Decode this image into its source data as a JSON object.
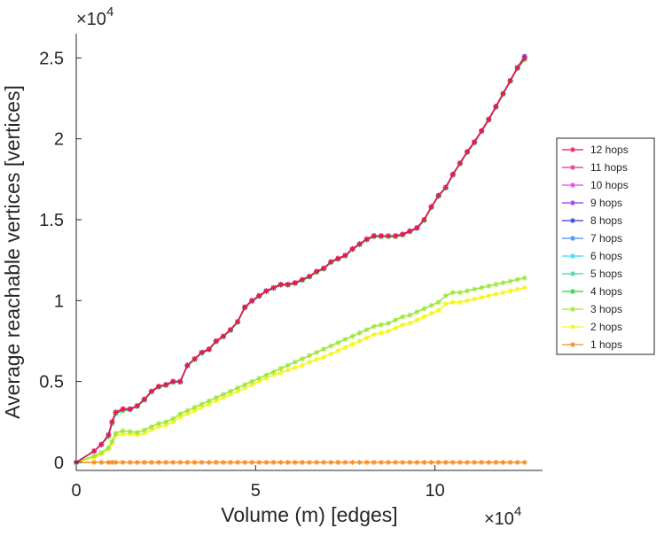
{
  "chart_data": {
    "type": "line",
    "title": "",
    "xlabel": "Volume (m) [edges]",
    "ylabel": "Average reachable vertices [vertices]",
    "x_exponent_label": "×10",
    "x_exponent_power": "4",
    "y_exponent_label": "×10",
    "y_exponent_power": "4",
    "xlim": [
      0,
      130000
    ],
    "ylim": [
      -500,
      26500
    ],
    "x_ticks": [
      0,
      50000,
      100000
    ],
    "x_tick_labels": [
      "0",
      "5",
      "10"
    ],
    "y_ticks": [
      0,
      5000,
      10000,
      15000,
      20000,
      25000
    ],
    "y_tick_labels": [
      "0",
      "0.5",
      "1",
      "1.5",
      "2",
      "2.5"
    ],
    "grid": false,
    "legend_position": "right",
    "x": [
      0,
      5000,
      7000,
      9000,
      10000,
      11000,
      13000,
      15000,
      17000,
      19000,
      21000,
      23000,
      25000,
      27000,
      29000,
      31000,
      33000,
      35000,
      37000,
      39000,
      41000,
      43000,
      45000,
      47000,
      49000,
      51000,
      53000,
      55000,
      57000,
      59000,
      61000,
      63000,
      65000,
      67000,
      69000,
      71000,
      73000,
      75000,
      77000,
      79000,
      81000,
      83000,
      85000,
      87000,
      89000,
      91000,
      93000,
      95000,
      97000,
      99000,
      101000,
      103000,
      105000,
      107000,
      109000,
      111000,
      113000,
      115000,
      117000,
      119000,
      121000,
      123000,
      125000
    ],
    "series": [
      {
        "name": "12 hops",
        "color": "#e6194b",
        "values": [
          0,
          700,
          1100,
          1700,
          2500,
          3100,
          3300,
          3300,
          3500,
          3900,
          4400,
          4700,
          4800,
          5000,
          5000,
          6000,
          6400,
          6800,
          7000,
          7500,
          7800,
          8200,
          8700,
          9600,
          10000,
          10300,
          10600,
          10800,
          11000,
          11000,
          11100,
          11300,
          11500,
          11800,
          12000,
          12400,
          12600,
          12800,
          13200,
          13500,
          13800,
          14000,
          14000,
          14000,
          14000,
          14100,
          14300,
          14500,
          15000,
          15800,
          16500,
          17000,
          17800,
          18500,
          19200,
          19800,
          20500,
          21200,
          22000,
          22800,
          23600,
          24400,
          25000
        ]
      },
      {
        "name": "11 hops",
        "color": "#f0298a",
        "values": [
          0,
          700,
          1100,
          1700,
          2500,
          3100,
          3300,
          3300,
          3500,
          3900,
          4400,
          4700,
          4800,
          5000,
          5000,
          6000,
          6400,
          6800,
          7000,
          7500,
          7800,
          8200,
          8700,
          9600,
          10000,
          10300,
          10600,
          10800,
          11000,
          11000,
          11100,
          11300,
          11500,
          11800,
          12000,
          12400,
          12600,
          12800,
          13200,
          13500,
          13800,
          14000,
          14000,
          14000,
          14000,
          14100,
          14300,
          14500,
          15000,
          15800,
          16500,
          17000,
          17800,
          18500,
          19200,
          19800,
          20500,
          21200,
          22000,
          22800,
          23600,
          24400,
          25000
        ]
      },
      {
        "name": "10 hops",
        "color": "#ea3bf0",
        "values": [
          0,
          700,
          1100,
          1700,
          2500,
          3100,
          3300,
          3300,
          3500,
          3900,
          4400,
          4700,
          4800,
          5000,
          5000,
          6000,
          6400,
          6800,
          7000,
          7500,
          7800,
          8200,
          8700,
          9600,
          10000,
          10300,
          10600,
          10800,
          11000,
          11000,
          11100,
          11300,
          11500,
          11800,
          12000,
          12400,
          12600,
          12800,
          13200,
          13500,
          13800,
          14000,
          14000,
          14000,
          14000,
          14100,
          14300,
          14500,
          15000,
          15800,
          16500,
          17000,
          17800,
          18500,
          19200,
          19800,
          20500,
          21200,
          22000,
          22800,
          23600,
          24400,
          25000
        ]
      },
      {
        "name": "9 hops",
        "color": "#8c39e6",
        "values": [
          0,
          700,
          1100,
          1700,
          2500,
          3100,
          3300,
          3300,
          3500,
          3900,
          4400,
          4700,
          4800,
          5000,
          5000,
          6000,
          6400,
          6800,
          7000,
          7500,
          7800,
          8200,
          8700,
          9600,
          10000,
          10300,
          10600,
          10800,
          11000,
          11000,
          11100,
          11300,
          11500,
          11800,
          12000,
          12400,
          12600,
          12800,
          13200,
          13500,
          13800,
          14000,
          14000,
          14000,
          14000,
          14100,
          14300,
          14500,
          15000,
          15800,
          16500,
          17000,
          17800,
          18500,
          19200,
          19800,
          20500,
          21200,
          22000,
          22800,
          23600,
          24400,
          25000
        ]
      },
      {
        "name": "8 hops",
        "color": "#2a3ad6",
        "values": [
          0,
          700,
          1100,
          1700,
          2500,
          3100,
          3300,
          3300,
          3500,
          3900,
          4400,
          4700,
          4800,
          5000,
          5000,
          6000,
          6400,
          6800,
          7000,
          7500,
          7800,
          8200,
          8700,
          9600,
          10000,
          10300,
          10600,
          10800,
          11000,
          11000,
          11100,
          11300,
          11500,
          11800,
          12000,
          12400,
          12600,
          12800,
          13200,
          13500,
          13800,
          14000,
          14000,
          14000,
          14000,
          14100,
          14300,
          14500,
          15000,
          15800,
          16500,
          17000,
          17800,
          18500,
          19200,
          19800,
          20500,
          21200,
          22000,
          22800,
          23600,
          24400,
          25100
        ]
      },
      {
        "name": "7 hops",
        "color": "#3a8ef0",
        "values": [
          0,
          700,
          1100,
          1700,
          2500,
          3100,
          3300,
          3300,
          3500,
          3900,
          4400,
          4700,
          4800,
          5000,
          5000,
          6000,
          6400,
          6800,
          7000,
          7500,
          7800,
          8200,
          8700,
          9600,
          10000,
          10300,
          10600,
          10800,
          11000,
          11000,
          11100,
          11300,
          11500,
          11800,
          12000,
          12400,
          12600,
          12800,
          13200,
          13500,
          13800,
          14000,
          14000,
          14000,
          14000,
          14100,
          14300,
          14500,
          15000,
          15800,
          16500,
          17000,
          17800,
          18500,
          19200,
          19800,
          20500,
          21200,
          22000,
          22800,
          23600,
          24400,
          25000
        ]
      },
      {
        "name": "6 hops",
        "color": "#36d6f0",
        "values": [
          0,
          700,
          1100,
          1700,
          2500,
          3100,
          3300,
          3300,
          3500,
          3900,
          4400,
          4700,
          4800,
          5000,
          5000,
          6000,
          6400,
          6800,
          7000,
          7500,
          7800,
          8200,
          8700,
          9600,
          10000,
          10300,
          10600,
          10800,
          11000,
          11000,
          11100,
          11300,
          11500,
          11800,
          12000,
          12400,
          12600,
          12800,
          13200,
          13500,
          13800,
          14000,
          14000,
          14000,
          14000,
          14100,
          14300,
          14500,
          15000,
          15800,
          16500,
          17000,
          17800,
          18500,
          19200,
          19800,
          20500,
          21200,
          22000,
          22800,
          23600,
          24400,
          25000
        ]
      },
      {
        "name": "5 hops",
        "color": "#2fd8a6",
        "values": [
          0,
          700,
          1100,
          1700,
          2500,
          3100,
          3300,
          3300,
          3500,
          3900,
          4400,
          4700,
          4800,
          5000,
          5000,
          6000,
          6400,
          6800,
          7000,
          7500,
          7800,
          8200,
          8700,
          9600,
          10000,
          10300,
          10600,
          10800,
          11000,
          11000,
          11100,
          11300,
          11500,
          11800,
          12000,
          12400,
          12600,
          12800,
          13200,
          13500,
          13800,
          14000,
          14000,
          14000,
          14000,
          14100,
          14300,
          14500,
          15000,
          15800,
          16500,
          17000,
          17800,
          18500,
          19200,
          19800,
          20500,
          21200,
          22000,
          22800,
          23600,
          24400,
          25000
        ]
      },
      {
        "name": "4 hops",
        "color": "#1ed836",
        "values": [
          0,
          700,
          1100,
          1600,
          2400,
          3000,
          3200,
          3250,
          3450,
          3850,
          4350,
          4650,
          4750,
          4950,
          4950,
          5950,
          6350,
          6750,
          6950,
          7450,
          7750,
          8150,
          8650,
          9550,
          9950,
          10250,
          10550,
          10750,
          10950,
          10950,
          11050,
          11250,
          11450,
          11750,
          11950,
          12350,
          12550,
          12750,
          13150,
          13450,
          13750,
          13950,
          13950,
          13950,
          13950,
          14050,
          14250,
          14450,
          14950,
          15750,
          16450,
          16950,
          17750,
          18450,
          19150,
          19750,
          20450,
          21150,
          21950,
          22750,
          23550,
          24350,
          24900
        ]
      },
      {
        "name": "3 hops",
        "color": "#9ce63a",
        "values": [
          0,
          400,
          600,
          900,
          1300,
          1800,
          1950,
          1900,
          1850,
          2000,
          2200,
          2400,
          2500,
          2700,
          3000,
          3200,
          3400,
          3600,
          3800,
          4000,
          4200,
          4400,
          4600,
          4800,
          5000,
          5200,
          5400,
          5600,
          5800,
          6000,
          6200,
          6400,
          6600,
          6800,
          7000,
          7200,
          7400,
          7600,
          7800,
          8000,
          8200,
          8400,
          8500,
          8600,
          8800,
          9000,
          9100,
          9300,
          9500,
          9700,
          9900,
          10300,
          10500,
          10500,
          10600,
          10700,
          10800,
          10900,
          11000,
          11100,
          11200,
          11300,
          11400
        ]
      },
      {
        "name": "2 hops",
        "color": "#f6f51a",
        "values": [
          0,
          300,
          500,
          800,
          1200,
          1650,
          1750,
          1750,
          1700,
          1800,
          2000,
          2200,
          2300,
          2500,
          2800,
          3000,
          3200,
          3400,
          3600,
          3800,
          4000,
          4200,
          4400,
          4600,
          4800,
          5000,
          5200,
          5400,
          5550,
          5700,
          5850,
          6000,
          6200,
          6350,
          6500,
          6700,
          6900,
          7100,
          7300,
          7500,
          7700,
          7900,
          8000,
          8100,
          8300,
          8500,
          8600,
          8800,
          9000,
          9200,
          9400,
          9800,
          9900,
          9900,
          10000,
          10100,
          10200,
          10300,
          10400,
          10500,
          10600,
          10700,
          10800
        ]
      },
      {
        "name": "1 hops",
        "color": "#f28a1e",
        "values": [
          0,
          0,
          0,
          0,
          0,
          0,
          0,
          0,
          0,
          0,
          0,
          0,
          0,
          0,
          0,
          0,
          0,
          0,
          0,
          0,
          0,
          0,
          0,
          0,
          0,
          0,
          0,
          0,
          0,
          0,
          0,
          0,
          0,
          0,
          0,
          0,
          0,
          0,
          0,
          0,
          0,
          0,
          0,
          0,
          0,
          0,
          0,
          0,
          0,
          0,
          0,
          0,
          0,
          0,
          0,
          0,
          0,
          0,
          0,
          0,
          0,
          0,
          0
        ]
      }
    ]
  }
}
